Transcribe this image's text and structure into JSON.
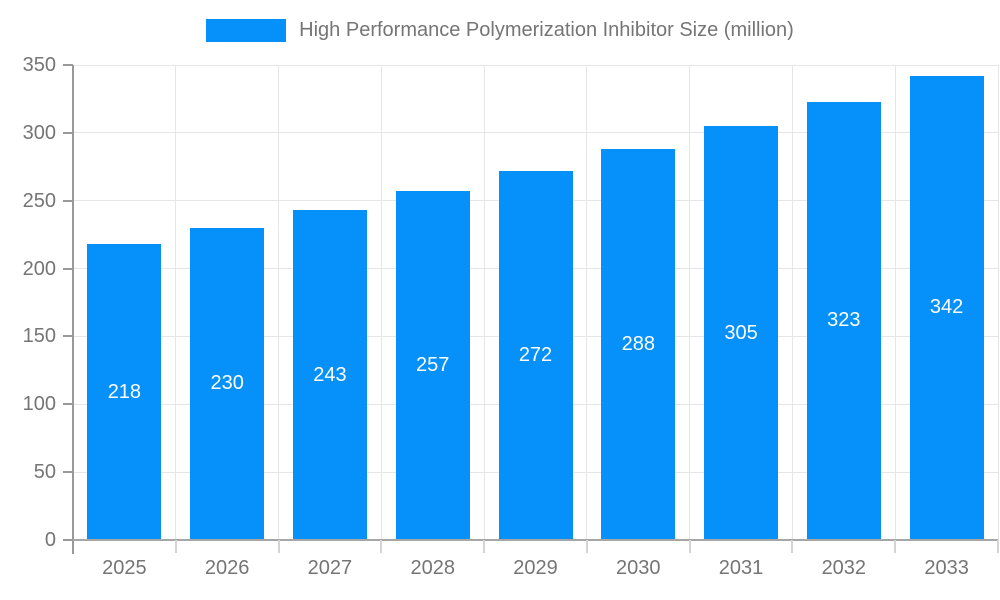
{
  "chart_data": {
    "type": "bar",
    "title": "High Performance Polymerization Inhibitor Size (million)",
    "categories": [
      "2025",
      "2026",
      "2027",
      "2028",
      "2029",
      "2030",
      "2031",
      "2032",
      "2033"
    ],
    "values": [
      218,
      230,
      243,
      257,
      272,
      288,
      305,
      323,
      342
    ],
    "xlabel": "",
    "ylabel": "",
    "ylim": [
      0,
      350
    ],
    "y_ticks": [
      0,
      50,
      100,
      150,
      200,
      250,
      300,
      350
    ],
    "grid": true,
    "legend_position": "top-center",
    "value_label_position": "inside-center"
  },
  "legend": {
    "label": "High Performance Polymerization Inhibitor Size (million)"
  },
  "colors": {
    "bar": "#0590fa",
    "title_text": "#757575",
    "axis_text": "#757575",
    "value_label_text": "#ffffff",
    "grid_line": "#e6e6e6",
    "axis_line": "#999999",
    "axis_line_light": "#a6a6a6",
    "minor_tick": "#d4d4d4",
    "background": "#ffffff"
  }
}
